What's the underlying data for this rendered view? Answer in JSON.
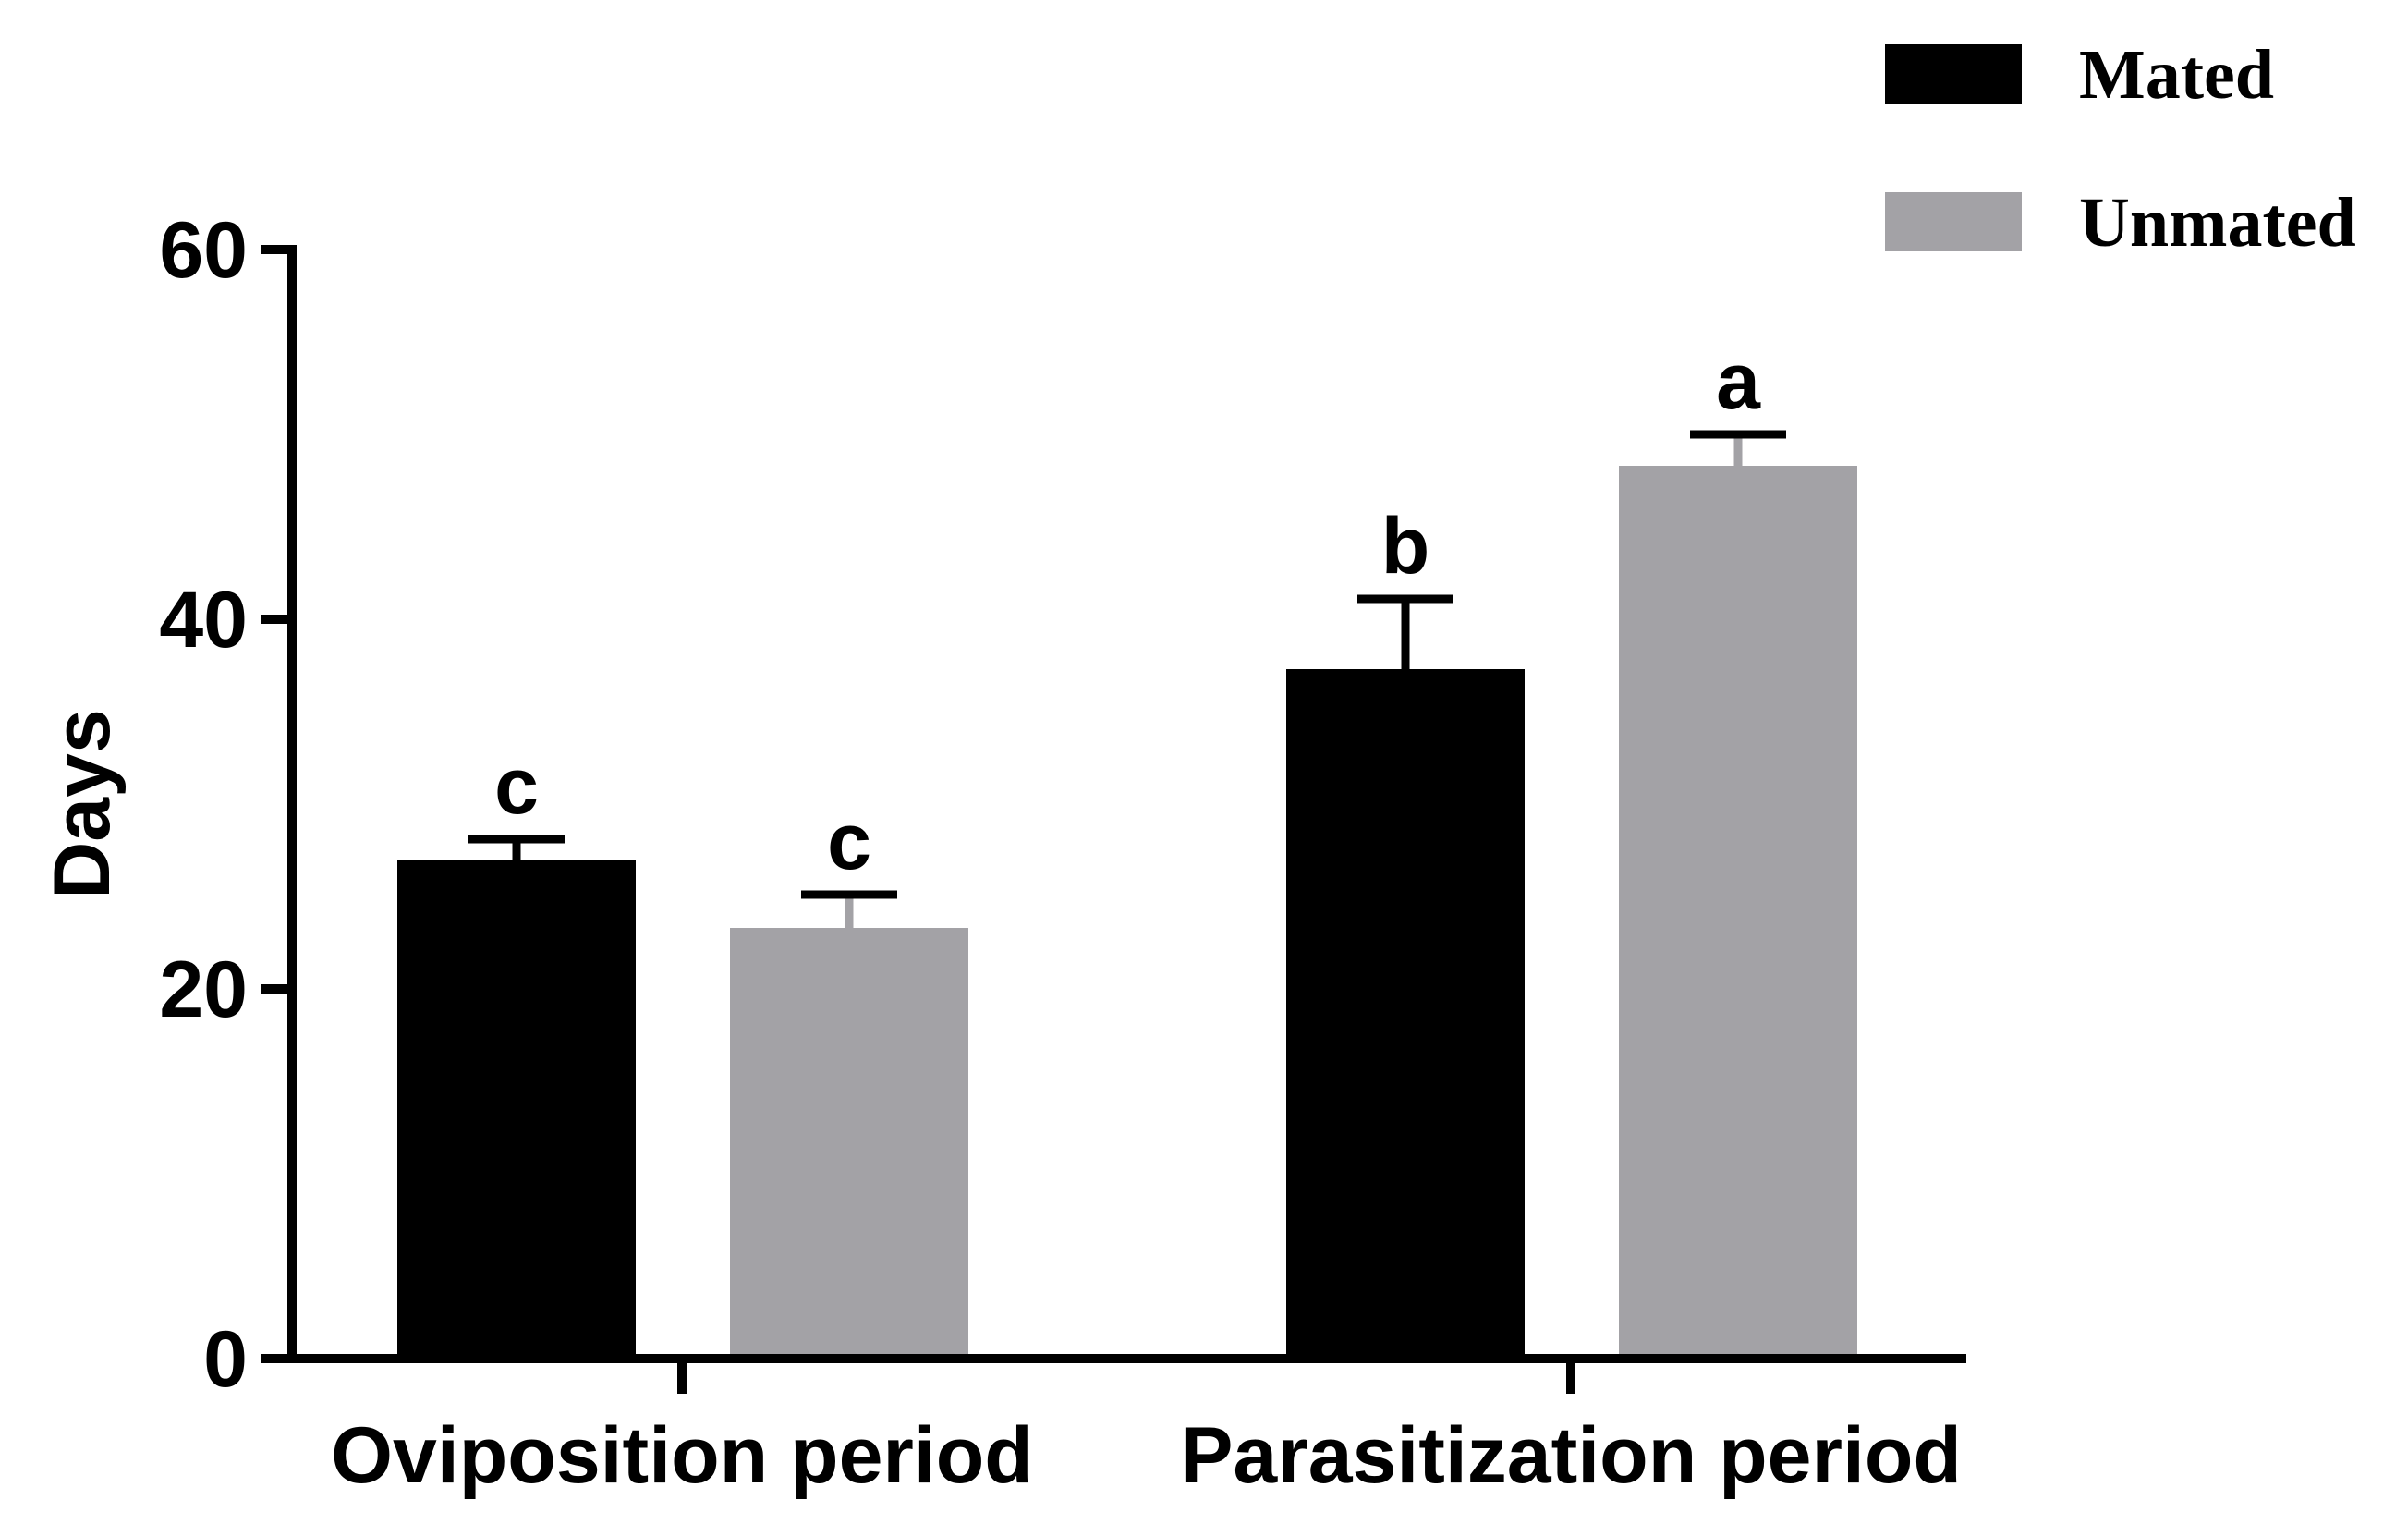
{
  "chart_data": {
    "type": "bar",
    "title": "",
    "xlabel": "",
    "ylabel": "Days",
    "ylim": [
      0,
      60
    ],
    "yticks": [
      0,
      20,
      40,
      60
    ],
    "categories": [
      "Oviposition period",
      "Parasitization period"
    ],
    "series": [
      {
        "name": "Mated",
        "color": "#000000",
        "values": [
          27,
          37.3
        ],
        "errors": [
          1.1,
          3.8
        ],
        "sig_labels": [
          "c",
          "b"
        ]
      },
      {
        "name": "Unmated",
        "color": "#a3a2a6",
        "values": [
          23.3,
          48.3
        ],
        "errors": [
          1.8,
          1.7
        ],
        "sig_labels": [
          "c",
          "a"
        ]
      }
    ],
    "legend_position": "top-right"
  }
}
